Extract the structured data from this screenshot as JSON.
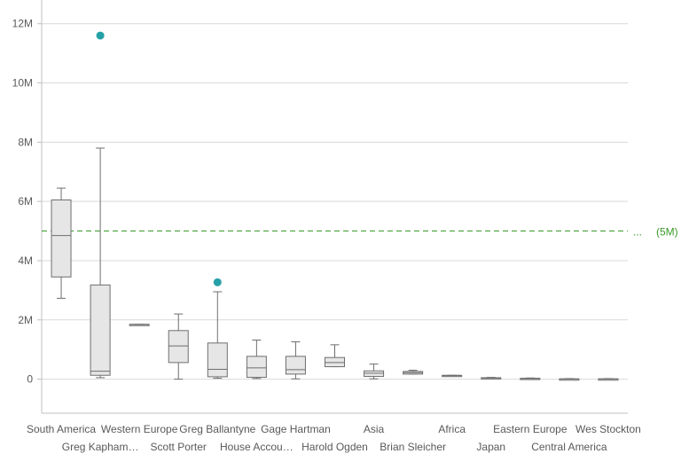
{
  "chart_data": {
    "type": "boxplot",
    "ylim": [
      -1150000,
      12800000
    ],
    "y_ticks": [
      {
        "value": 0,
        "label": "0"
      },
      {
        "value": 2000000,
        "label": "2M"
      },
      {
        "value": 4000000,
        "label": "4M"
      },
      {
        "value": 6000000,
        "label": "6M"
      },
      {
        "value": 8000000,
        "label": "8M"
      },
      {
        "value": 10000000,
        "label": "10M"
      },
      {
        "value": 12000000,
        "label": "12M"
      }
    ],
    "grid": true,
    "reference_line": {
      "value": 5000000,
      "label": "(5M)",
      "ellipsis": "...",
      "color": "#3a9a2a"
    },
    "colors": {
      "box_fill": "#e6e6e6",
      "box_stroke": "#6e6e6e",
      "outlier": "#26a0a7",
      "grid": "#d9d9d9"
    },
    "categories": [
      {
        "name": "South America",
        "min": 2730000,
        "q1": 3450000,
        "median": 4850000,
        "q3": 6050000,
        "max": 6450000,
        "outliers": []
      },
      {
        "name": "Greg Kapham…",
        "min": 50000,
        "q1": 130000,
        "median": 270000,
        "q3": 3180000,
        "max": 7800000,
        "outliers": [
          11600000
        ]
      },
      {
        "name": "Western Europe",
        "min": 1850000,
        "q1": 1850000,
        "median": 1850000,
        "q3": 1850000,
        "max": 1850000,
        "outliers": []
      },
      {
        "name": "Scott Porter",
        "min": 0,
        "q1": 560000,
        "median": 1120000,
        "q3": 1640000,
        "max": 2200000,
        "outliers": []
      },
      {
        "name": "Greg Ballantyne",
        "min": 30000,
        "q1": 80000,
        "median": 330000,
        "q3": 1220000,
        "max": 2950000,
        "outliers": [
          3270000
        ]
      },
      {
        "name": "House Accou…",
        "min": 20000,
        "q1": 60000,
        "median": 380000,
        "q3": 770000,
        "max": 1320000,
        "outliers": []
      },
      {
        "name": "Gage Hartman",
        "min": 10000,
        "q1": 170000,
        "median": 320000,
        "q3": 770000,
        "max": 1260000,
        "outliers": []
      },
      {
        "name": "Harold Ogden",
        "min": 420000,
        "q1": 420000,
        "median": 560000,
        "q3": 730000,
        "max": 1160000,
        "outliers": []
      },
      {
        "name": "Asia",
        "min": 10000,
        "q1": 90000,
        "median": 200000,
        "q3": 280000,
        "max": 510000,
        "outliers": []
      },
      {
        "name": "Brian Sleicher",
        "min": 170000,
        "q1": 170000,
        "median": 220000,
        "q3": 260000,
        "max": 300000,
        "outliers": []
      },
      {
        "name": "Africa",
        "min": 100000,
        "q1": 100000,
        "median": 120000,
        "q3": 130000,
        "max": 130000,
        "outliers": []
      },
      {
        "name": "Japan",
        "min": 20000,
        "q1": 20000,
        "median": 40000,
        "q3": 50000,
        "max": 60000,
        "outliers": []
      },
      {
        "name": "Eastern Europe",
        "min": 10000,
        "q1": 10000,
        "median": 20000,
        "q3": 30000,
        "max": 40000,
        "outliers": []
      },
      {
        "name": "Central America",
        "min": 0,
        "q1": 0,
        "median": 10000,
        "q3": 10000,
        "max": 20000,
        "outliers": []
      },
      {
        "name": "Wes Stockton",
        "min": 0,
        "q1": 0,
        "median": 10000,
        "q3": 10000,
        "max": 20000,
        "outliers": []
      }
    ]
  }
}
